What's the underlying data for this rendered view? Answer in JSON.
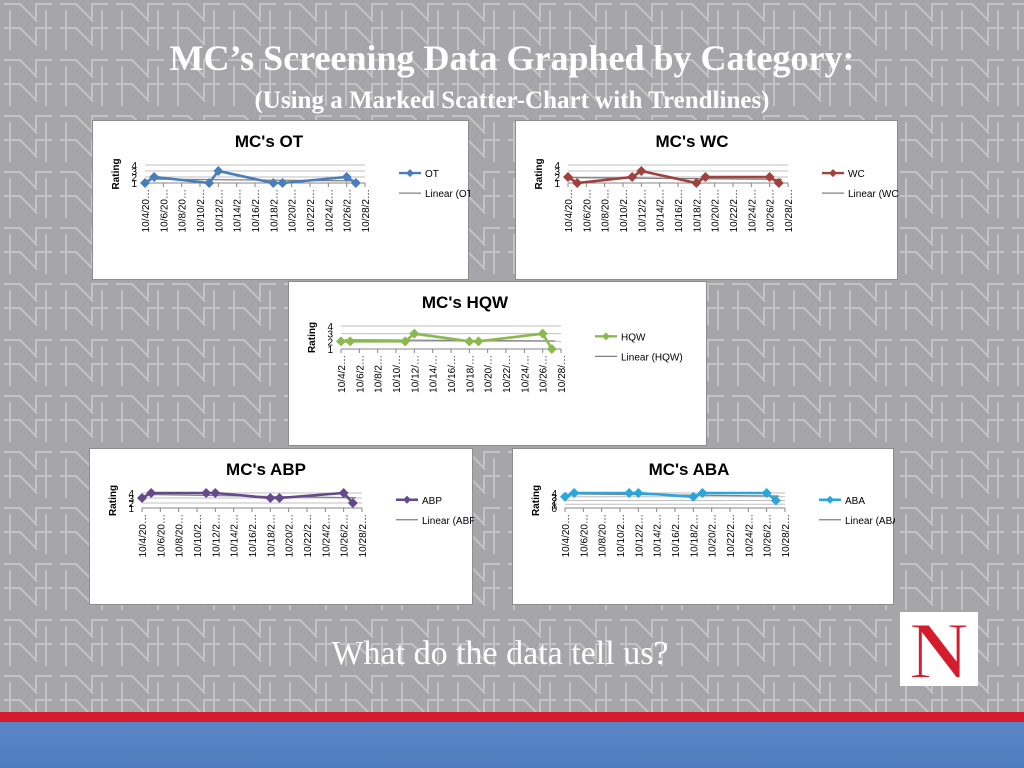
{
  "slide": {
    "title": "MC’s Screening Data Graphed by Category:",
    "subtitle": "(Using a Marked Scatter-Chart with Trendlines)",
    "question": "What do the data tell us?",
    "logo_letter": "N",
    "colors": {
      "background": "#a6a6a8",
      "accent_red": "#d41c2c",
      "footer_blue": "#4f7cbf"
    }
  },
  "chart_data": [
    {
      "id": "ot",
      "type": "line",
      "title": "MC's OT",
      "ylabel": "Rating",
      "ylim": [
        1,
        4
      ],
      "yticks": [
        1,
        2,
        3,
        4
      ],
      "xtick_labels": [
        "10/4/20…",
        "10/6/20…",
        "10/8/20…",
        "10/10/2…",
        "10/12/2…",
        "10/14/2…",
        "10/16/2…",
        "10/18/2…",
        "10/20/2…",
        "10/22/2…",
        "10/24/2…",
        "10/26/2…",
        "10/28/2…"
      ],
      "x": [
        "2010-10-04",
        "2010-10-05",
        "2010-10-11",
        "2010-10-12",
        "2010-10-18",
        "2010-10-19",
        "2010-10-26",
        "2010-10-27"
      ],
      "series": [
        {
          "name": "OT",
          "values": [
            1,
            2,
            1,
            3,
            1,
            1,
            2,
            1
          ],
          "color": "#4a7ebb"
        }
      ],
      "trend": {
        "name": "Linear (OT)",
        "start": 1.65,
        "end": 1.35,
        "color": "#7f7f7f"
      },
      "grid": true,
      "legend": "right"
    },
    {
      "id": "wc",
      "type": "line",
      "title": "MC's WC",
      "ylabel": "Rating",
      "ylim": [
        1,
        4
      ],
      "yticks": [
        1,
        2,
        3,
        4
      ],
      "xtick_labels": [
        "10/4/20…",
        "10/6/20…",
        "10/8/20…",
        "10/10/2…",
        "10/12/2…",
        "10/14/2…",
        "10/16/2…",
        "10/18/2…",
        "10/20/2…",
        "10/22/2…",
        "10/24/2…",
        "10/26/2…",
        "10/28/2…"
      ],
      "x": [
        "2010-10-04",
        "2010-10-05",
        "2010-10-11",
        "2010-10-12",
        "2010-10-18",
        "2010-10-19",
        "2010-10-26",
        "2010-10-27"
      ],
      "series": [
        {
          "name": "WC",
          "values": [
            2,
            1,
            2,
            3,
            1,
            2,
            2,
            1
          ],
          "color": "#a0413e"
        }
      ],
      "trend": {
        "name": "Linear (WC)",
        "start": 1.9,
        "end": 1.6,
        "color": "#7f7f7f"
      },
      "grid": true,
      "legend": "right"
    },
    {
      "id": "hqw",
      "type": "line",
      "title": "MC's HQW",
      "ylabel": "Rating",
      "ylim": [
        1,
        4
      ],
      "yticks": [
        1,
        2,
        3,
        4
      ],
      "xtick_labels": [
        "10/4/2…",
        "10/6/2…",
        "10/8/2…",
        "10/10/…",
        "10/12/…",
        "10/14/…",
        "10/16/…",
        "10/18/…",
        "10/20/…",
        "10/22/…",
        "10/24/…",
        "10/26/…",
        "10/28/…"
      ],
      "x": [
        "2010-10-04",
        "2010-10-05",
        "2010-10-11",
        "2010-10-12",
        "2010-10-18",
        "2010-10-19",
        "2010-10-26",
        "2010-10-27"
      ],
      "series": [
        {
          "name": "HQW",
          "values": [
            2,
            2,
            2,
            3,
            2,
            2,
            3,
            1
          ],
          "color": "#8cb94f"
        }
      ],
      "trend": {
        "name": "Linear (HQW)",
        "start": 2.2,
        "end": 2.05,
        "color": "#7f7f7f"
      },
      "grid": true,
      "legend": "right"
    },
    {
      "id": "abp",
      "type": "line",
      "title": "MC's ABP",
      "ylabel": "Rating",
      "ylim": [
        1,
        4
      ],
      "yticks": [
        1,
        2,
        3,
        4
      ],
      "xtick_labels": [
        "10/4/20…",
        "10/6/20…",
        "10/8/20…",
        "10/10/2…",
        "10/12/2…",
        "10/14/2…",
        "10/16/2…",
        "10/18/2…",
        "10/20/2…",
        "10/22/2…",
        "10/24/2…",
        "10/26/2…",
        "10/28/2…"
      ],
      "x": [
        "2010-10-04",
        "2010-10-05",
        "2010-10-11",
        "2010-10-12",
        "2010-10-18",
        "2010-10-19",
        "2010-10-26",
        "2010-10-27"
      ],
      "series": [
        {
          "name": "ABP",
          "values": [
            3,
            4,
            4,
            4,
            3,
            3,
            4,
            2
          ],
          "color": "#644a8a"
        }
      ],
      "trend": {
        "name": "Linear (ABP)",
        "start": 3.7,
        "end": 3.05,
        "color": "#7f7f7f"
      },
      "grid": true,
      "legend": "right"
    },
    {
      "id": "aba",
      "type": "line",
      "title": "MC's ABA",
      "ylabel": "Rating",
      "ylim": [
        0,
        4
      ],
      "yticks": [
        0,
        1,
        2,
        3,
        4
      ],
      "xtick_labels": [
        "10/4/20…",
        "10/6/20…",
        "10/8/20…",
        "10/10/2…",
        "10/12/2…",
        "10/14/2…",
        "10/16/2…",
        "10/18/2…",
        "10/20/2…",
        "10/22/2…",
        "10/24/2…",
        "10/26/2…",
        "10/28/2…"
      ],
      "x": [
        "2010-10-04",
        "2010-10-05",
        "2010-10-11",
        "2010-10-12",
        "2010-10-18",
        "2010-10-19",
        "2010-10-26",
        "2010-10-27"
      ],
      "series": [
        {
          "name": "ABA",
          "values": [
            3,
            4,
            4,
            4,
            3,
            4,
            4,
            2
          ],
          "color": "#2aa6dd"
        }
      ],
      "trend": {
        "name": "Linear (ABA)",
        "start": 3.75,
        "end": 3.2,
        "color": "#7f7f7f"
      },
      "grid": true,
      "legend": "right"
    }
  ]
}
